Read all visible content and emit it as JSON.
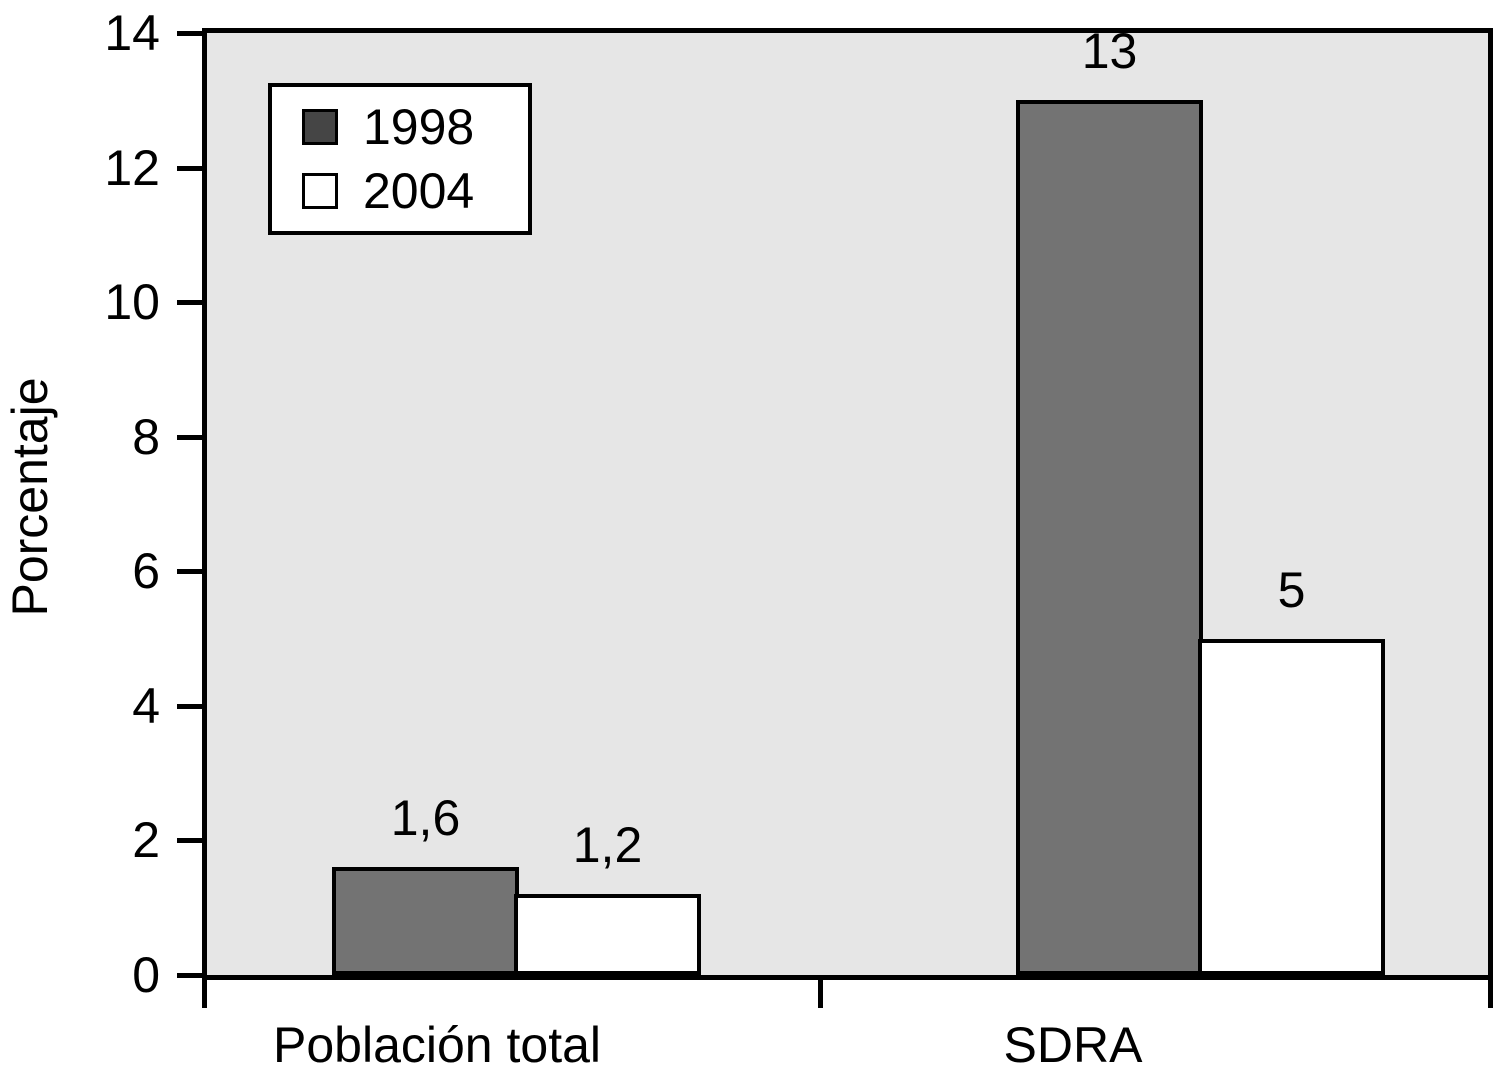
{
  "chart_data": {
    "type": "bar",
    "title": "",
    "ylabel": "Porcentaje",
    "xlabel": "",
    "categories": [
      "Población total",
      "SDRA"
    ],
    "series": [
      {
        "name": "1998",
        "values": [
          1.6,
          13
        ],
        "value_labels": [
          "1,6",
          "13"
        ],
        "fill": "#737373",
        "legend_fill": "#454545"
      },
      {
        "name": "2004",
        "values": [
          1.2,
          5
        ],
        "value_labels": [
          "1,2",
          "5"
        ],
        "fill": "#ffffff",
        "legend_fill": "#ffffff"
      }
    ],
    "ylim": [
      0,
      14
    ],
    "y_ticks": [
      0,
      2,
      4,
      6,
      8,
      10,
      12,
      14
    ],
    "grid": false,
    "legend_position": "top-left",
    "plot_background": "#e6e6e6",
    "bar_border_color": "#000000",
    "text_color": "#000000"
  }
}
